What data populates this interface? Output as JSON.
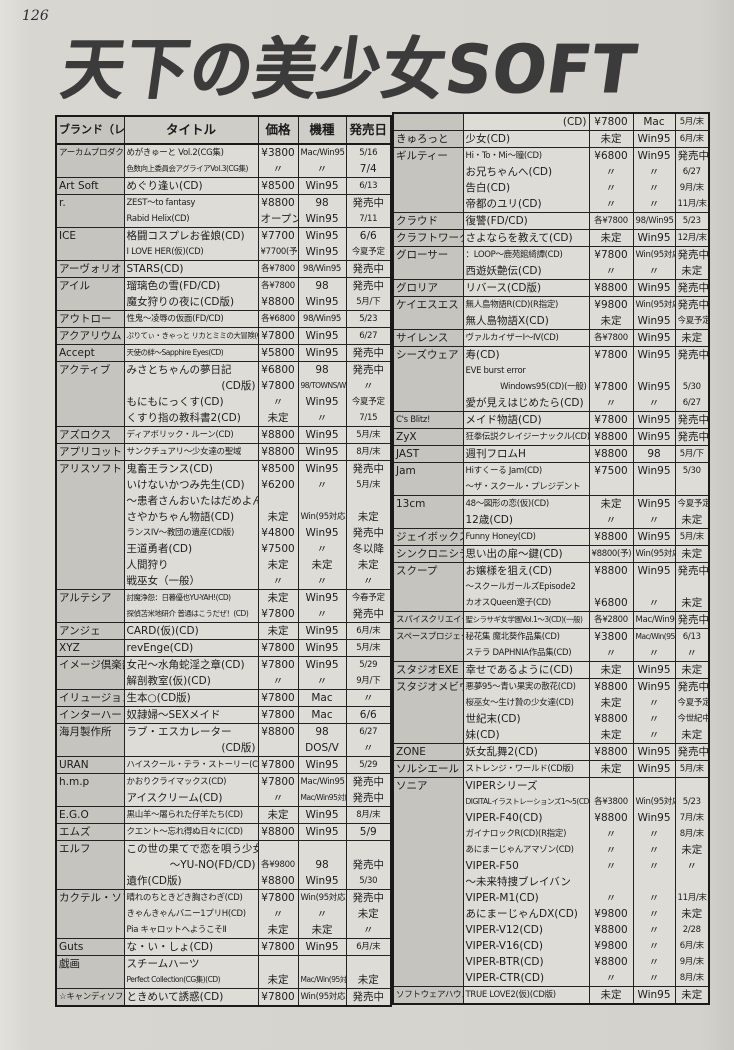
{
  "page": {
    "number": "126",
    "title": "天下の美少女SOFT"
  },
  "columns": {
    "brand": "ブランド（レーベル）",
    "title": "タイトル",
    "price": "価格",
    "platform": "機種",
    "date": "発売日"
  },
  "left_table": {
    "rows": [
      {
        "g": 1,
        "b": "アーカムプロダクツ",
        "t": "めがきゅーと Vol.2(CG集)",
        "p": "¥3800",
        "m": "Mac/Win95",
        "d": "5/16"
      },
      {
        "t": "色数向上委員会アグライアVol.3(CG集)",
        "p": "〃",
        "m": "〃",
        "d": "7/4"
      },
      {
        "g": 1,
        "b": "Art Soft",
        "t": "めぐり逢い(CD)",
        "p": "¥8500",
        "m": "Win95",
        "d": "6/13"
      },
      {
        "g": 1,
        "b": "r.",
        "t": "ZEST～to fantasy",
        "p": "¥8800",
        "m": "98",
        "d": "発売中"
      },
      {
        "t": "Rabid Helix(CD)",
        "p": "オープン",
        "m": "Win95",
        "d": "7/11"
      },
      {
        "g": 1,
        "b": "ICE",
        "t": "格闘コスプレお雀娘(CD)",
        "p": "¥7700",
        "m": "Win95",
        "d": "6/6"
      },
      {
        "t": "I LOVE HER(仮)(CD)",
        "p": "¥7700(予)",
        "m": "Win95",
        "d": "今夏予定"
      },
      {
        "g": 1,
        "b": "アーヴォリオ",
        "t": "STARS(CD)",
        "p": "各¥7800",
        "m": "98/Win95",
        "d": "発売中"
      },
      {
        "g": 1,
        "b": "アイル",
        "t": "瑠璃色の雪(FD/CD)",
        "p": "各¥7800",
        "m": "98",
        "d": "発売中"
      },
      {
        "t": "魔女狩りの夜に(CD版)",
        "p": "¥8800",
        "m": "Win95",
        "d": "5月/下"
      },
      {
        "g": 1,
        "b": "アウトロー",
        "t": "性鬼～凌辱の仮面(FD/CD)",
        "p": "各¥6800",
        "m": "98/Win95",
        "d": "5/23"
      },
      {
        "g": 1,
        "b": "アクアリウム",
        "t": "ぷりてぃ・きゃっと リカとミミの大冒険(CD)",
        "p": "¥7800",
        "m": "Win95",
        "d": "6/27"
      },
      {
        "g": 1,
        "b": "Accept",
        "t": "天使の絆～Sapphire Eyes(CD)",
        "p": "¥5800",
        "m": "Win95",
        "d": "発売中"
      },
      {
        "g": 1,
        "b": "アクティブ",
        "t": "みさとちゃんの夢日記",
        "p": "¥6800",
        "m": "98",
        "d": "発売中"
      },
      {
        "t": "(CD版)",
        "a": "r",
        "p": "¥7800",
        "m": "98/TOWNS/Win95",
        "d": "〃"
      },
      {
        "t": "もにもにっくす(CD)",
        "p": "〃",
        "m": "Win95",
        "d": "今夏予定"
      },
      {
        "t": "くすり指の教科書2(CD)",
        "p": "未定",
        "m": "〃",
        "d": "7/15"
      },
      {
        "g": 1,
        "b": "アズロクス",
        "t": "ディアボリック・ルーン(CD)",
        "p": "¥8800",
        "m": "Win95",
        "d": "5月/末"
      },
      {
        "g": 1,
        "b": "アプリコット",
        "t": "サンクチュアリ～少女達の聖域",
        "p": "¥8800",
        "m": "Win95",
        "d": "8月/末"
      },
      {
        "g": 1,
        "b": "アリスソフト",
        "t": "鬼畜王ランス(CD)",
        "p": "¥8500",
        "m": "Win95",
        "d": "発売中"
      },
      {
        "t": "いけないかつみ先生(CD)",
        "p": "¥6200",
        "m": "〃",
        "d": "5月/末"
      },
      {
        "t": "～患者さんおいたはだめよん"
      },
      {
        "t": "さやかちゃん物語(CD)",
        "p": "未定",
        "m": "Win(95対応)",
        "d": "未定"
      },
      {
        "t": "ランスIV～教団の遺産(CD版)",
        "p": "¥4800",
        "m": "Win95",
        "d": "発売中"
      },
      {
        "t": "王道勇者(CD)",
        "p": "¥7500",
        "m": "〃",
        "d": "冬以降"
      },
      {
        "t": "人間狩り",
        "p": "未定",
        "m": "未定",
        "d": "未定"
      },
      {
        "t": "戦巫女（一般）",
        "p": "〃",
        "m": "〃",
        "d": "〃"
      },
      {
        "g": 1,
        "b": "アルテシア",
        "t": "討魔浄怨：日暮優也YU-YAH!(CD)",
        "p": "未定",
        "m": "Win95",
        "d": "今春予定"
      },
      {
        "t": "探偵苫米地研介 普通はこうだぜ！(CD)",
        "p": "¥7800",
        "m": "〃",
        "d": "発売中"
      },
      {
        "g": 1,
        "b": "アンジェ",
        "t": "CARD(仮)(CD)",
        "p": "未定",
        "m": "Win95",
        "d": "6月/末"
      },
      {
        "g": 1,
        "b": "XYZ",
        "t": "revEnge(CD)",
        "p": "¥7800",
        "m": "Win95",
        "d": "5月/末"
      },
      {
        "g": 1,
        "b": "イメージ倶楽部",
        "t": "女卍～水角蛇淫之章(CD)",
        "p": "¥7800",
        "m": "Win95",
        "d": "5/29"
      },
      {
        "t": "解剖教室(仮)(CD)",
        "p": "〃",
        "m": "〃",
        "d": "9月/下"
      },
      {
        "g": 1,
        "b": "イリュージョン",
        "t": "生本○(CD版)",
        "p": "¥7800",
        "m": "Mac",
        "d": "〃"
      },
      {
        "g": 1,
        "b": "インターハート",
        "t": "奴隷婦～SEXメイド",
        "p": "¥7800",
        "m": "Mac",
        "d": "6/6"
      },
      {
        "g": 1,
        "b": "海月製作所",
        "t": "ラブ・エスカレーター",
        "p": "¥8800",
        "m": "98",
        "d": "6/27"
      },
      {
        "t": "(CD版)",
        "a": "r",
        "m": "DOS/V",
        "d": "〃"
      },
      {
        "g": 1,
        "b": "URAN",
        "t": "ハイスクール・テラ・ストーリー(CD)",
        "p": "¥7800",
        "m": "Win95",
        "d": "5/29"
      },
      {
        "g": 1,
        "b": "h.m.p",
        "t": "かおりクライマックス(CD)",
        "p": "¥7800",
        "m": "Mac/Win95",
        "d": "発売中"
      },
      {
        "t": "アイスクリーム(CD)",
        "p": "〃",
        "m": "Mac/Win95対応",
        "d": "発売中"
      },
      {
        "g": 1,
        "b": "E.G.O",
        "t": "黒山羊～屠られた仔羊たち(CD)",
        "p": "未定",
        "m": "Win95",
        "d": "8月/末"
      },
      {
        "g": 1,
        "b": "エムズ",
        "t": "クエント～忘れ得ぬ日々に(CD)",
        "p": "¥8800",
        "m": "Win95",
        "d": "5/9"
      },
      {
        "g": 1,
        "b": "エルフ",
        "t": "この世の果てで恋を唄う少女"
      },
      {
        "t": "～YU-NO(FD/CD)",
        "a": "r",
        "p": "各¥9800",
        "m": "98",
        "d": "発売中"
      },
      {
        "t": "遺作(CD版)",
        "p": "¥8800",
        "m": "Win95",
        "d": "5/30"
      },
      {
        "g": 1,
        "b": "カクテル・ソフト",
        "t": "晴れのちときどき胸さわぎ(CD)",
        "p": "¥7800",
        "m": "Win(95対応)",
        "d": "発売中"
      },
      {
        "t": "きゃんきゃんバニー1プリH(CD)",
        "p": "〃",
        "m": "〃",
        "d": "未定"
      },
      {
        "t": "Pia キャロットへようこそⅡ",
        "p": "未定",
        "m": "未定",
        "d": "〃"
      },
      {
        "g": 1,
        "b": "Guts",
        "t": "な・い・しょ(CD)",
        "p": "¥7800",
        "m": "Win95",
        "d": "6月/末"
      },
      {
        "g": 1,
        "b": "戯画",
        "t": "スチームハーツ"
      },
      {
        "t": "Perfect Collection(CG集)(CD)",
        "p": "未定",
        "m": "Mac/Win(95対応)",
        "d": "未定"
      },
      {
        "g": 1,
        "b": "☆キャンディソフト",
        "t": "ときめいて誘惑(CD)",
        "p": "¥7800",
        "m": "Win(95対応)",
        "d": "発売中"
      }
    ]
  },
  "right_table": {
    "rows": [
      {
        "g": 1,
        "t": "(CD)",
        "a": "r",
        "p": "¥7800",
        "m": "Mac",
        "d": "5月/末"
      },
      {
        "g": 1,
        "b": "きゅろっと",
        "t": "少女(CD)",
        "p": "未定",
        "m": "Win95",
        "d": "6月/末"
      },
      {
        "g": 1,
        "b": "ギルティー",
        "t": "Hi・To・Mi～瞳(CD)",
        "p": "¥6800",
        "m": "Win95",
        "d": "発売中"
      },
      {
        "t": "お兄ちゃんへ(CD)",
        "p": "〃",
        "m": "〃",
        "d": "6/27"
      },
      {
        "t": "告白(CD)",
        "p": "〃",
        "m": "〃",
        "d": "9月/末"
      },
      {
        "t": "帝都のユリ(CD)",
        "p": "〃",
        "m": "〃",
        "d": "11月/末"
      },
      {
        "g": 1,
        "b": "クラウド",
        "t": "復讐(FD/CD)",
        "p": "各¥7800",
        "m": "98/Win95",
        "d": "5/23"
      },
      {
        "g": 1,
        "b": "クラフトワーク",
        "t": "さよならを教えて(CD)",
        "p": "未定",
        "m": "Win95",
        "d": "12月/末"
      },
      {
        "g": 1,
        "b": "グローサー",
        "t": "：LOOP～鹿苑館綺譚(CD)",
        "p": "¥7800",
        "m": "Win(95対応)",
        "d": "発売中"
      },
      {
        "t": "西遊妖艶伝(CD)",
        "p": "〃",
        "m": "〃",
        "d": "未定"
      },
      {
        "g": 1,
        "b": "グロリア",
        "t": "リバース(CD版)",
        "p": "¥8800",
        "m": "Win95",
        "d": "発売中"
      },
      {
        "g": 1,
        "b": "ケイエスエス",
        "t": "無人島物語R(CD)(R指定)",
        "p": "¥9800",
        "m": "Win(95対応)",
        "d": "発売中"
      },
      {
        "t": "無人島物語X(CD)",
        "p": "未定",
        "m": "Win95",
        "d": "今夏予定"
      },
      {
        "g": 1,
        "b": "サイレンス",
        "t": "ヴァルカイザーⅠ～Ⅳ(CD)",
        "p": "各¥7800",
        "m": "Win95",
        "d": "未定"
      },
      {
        "g": 1,
        "b": "シーズウェア",
        "t": "寿(CD)",
        "p": "¥7800",
        "m": "Win95",
        "d": "発売中"
      },
      {
        "t": "EVE burst error"
      },
      {
        "t": "Windows95(CD)(一般)",
        "a": "r",
        "p": "¥7800",
        "m": "Win95",
        "d": "5/30"
      },
      {
        "t": "愛が見えはじめたら(CD)",
        "p": "〃",
        "m": "〃",
        "d": "6/27"
      },
      {
        "g": 1,
        "b": "C's Blitz!",
        "t": "メイド物語(CD)",
        "p": "¥7800",
        "m": "Win95",
        "d": "発売中"
      },
      {
        "g": 1,
        "b": "ZyX",
        "t": "狂拳伝説クレイジーナックル(CD)",
        "p": "¥8800",
        "m": "Win95",
        "d": "発売中"
      },
      {
        "g": 1,
        "b": "JAST",
        "t": "週刊フロムH",
        "p": "¥8800",
        "m": "98",
        "d": "5月/下"
      },
      {
        "g": 1,
        "b": "Jam",
        "t": "Hiすくーる Jam(CD)",
        "p": "¥7500",
        "m": "Win95",
        "d": "5/30"
      },
      {
        "t": "～ザ・スクール・プレジデント"
      },
      {
        "g": 1,
        "b": "13cm",
        "t": "48～図形の恋(仮)(CD)",
        "p": "未定",
        "m": "Win95",
        "d": "今夏予定"
      },
      {
        "t": "12歳(CD)",
        "p": "〃",
        "m": "〃",
        "d": "未定"
      },
      {
        "g": 1,
        "b": "ジェイボックス",
        "t": "Funny Honey(CD)",
        "p": "¥8800",
        "m": "Win95",
        "d": "5月/末"
      },
      {
        "g": 1,
        "b": "シンクロニシティ",
        "t": "思い出の扉～鍵(CD)",
        "p": "¥8800(予)",
        "m": "Win(95対応)",
        "d": "未定"
      },
      {
        "g": 1,
        "b": "スクープ",
        "t": "お嬢様を狙え(CD)",
        "p": "¥8800",
        "m": "Win95",
        "d": "発売中"
      },
      {
        "t": "～スクールガールズEpisode2"
      },
      {
        "t": "カオスQueen遼子(CD)",
        "p": "¥6800",
        "m": "〃",
        "d": "未定"
      },
      {
        "g": 1,
        "b": "スパイスクリエイティブ",
        "t": "聖シラサギ女学園Vol.1～3(CD)(一般)",
        "p": "各¥2800",
        "m": "Mac/Win95",
        "d": "発売中"
      },
      {
        "g": 1,
        "b": "スペースプロジェクト",
        "t": "秘花集 魔北葵作品集(CD)",
        "p": "¥3800",
        "m": "Mac/Win(95対応)",
        "d": "6/13"
      },
      {
        "t": "ステラ DAPHNIA作品集(CD)",
        "p": "〃",
        "m": "〃",
        "d": "〃"
      },
      {
        "g": 1,
        "b": "スタジオEXE",
        "t": "幸せであるように(CD)",
        "p": "未定",
        "m": "Win95",
        "d": "未定"
      },
      {
        "g": 1,
        "b": "スタジオメビウス",
        "t": "悪夢95～青い果実の散花(CD)",
        "p": "¥8800",
        "m": "Win95",
        "d": "発売中"
      },
      {
        "t": "桜巫女～生け贄の少女達(CD)",
        "p": "未定",
        "m": "〃",
        "d": "今夏予定"
      },
      {
        "t": "世紀末(CD)",
        "p": "¥8800",
        "m": "〃",
        "d": "今世紀中"
      },
      {
        "t": "妹(CD)",
        "p": "未定",
        "m": "〃",
        "d": "未定"
      },
      {
        "g": 1,
        "b": "ZONE",
        "t": "妖女乱舞2(CD)",
        "p": "¥8800",
        "m": "Win95",
        "d": "発売中"
      },
      {
        "g": 1,
        "b": "ソルシエール",
        "t": "ストレンジ・ワールド(CD版)",
        "p": "未定",
        "m": "Win95",
        "d": "5月/末"
      },
      {
        "g": 1,
        "b": "ソニア",
        "t": "VIPERシリーズ"
      },
      {
        "t": "DIGITALイラストレーションズ1～5(CD)",
        "p": "各¥3800",
        "m": "Win(95対応)",
        "d": "5/23"
      },
      {
        "t": "VIPER-F40(CD)",
        "p": "¥8800",
        "m": "Win95",
        "d": "7月/末"
      },
      {
        "t": "ガイナロックR(CD)(R指定)",
        "p": "〃",
        "m": "〃",
        "d": "8月/末"
      },
      {
        "t": "あにまーじゃんアマゾン(CD)",
        "p": "〃",
        "m": "〃",
        "d": "未定"
      },
      {
        "t": "VIPER-F50",
        "p": "〃",
        "m": "〃",
        "d": "〃"
      },
      {
        "t": "～未来特捜ブレイバン"
      },
      {
        "t": "VIPER-M1(CD)",
        "p": "〃",
        "m": "〃",
        "d": "11月/末"
      },
      {
        "t": "あにまーじゃんDX(CD)",
        "p": "¥9800",
        "m": "〃",
        "d": "未定"
      },
      {
        "t": "VIPER-V12(CD)",
        "p": "¥8800",
        "m": "〃",
        "d": "2/28"
      },
      {
        "t": "VIPER-V16(CD)",
        "p": "¥9800",
        "m": "〃",
        "d": "6月/末"
      },
      {
        "t": "VIPER-BTR(CD)",
        "p": "¥8800",
        "m": "〃",
        "d": "9月/末"
      },
      {
        "t": "VIPER-CTR(CD)",
        "p": "〃",
        "m": "〃",
        "d": "8月/末"
      },
      {
        "g": 1,
        "b": "ソフトウェアハウスぱせり",
        "t": "TRUE LOVE2(仮)(CD版)",
        "p": "未定",
        "m": "Win95",
        "d": "未定"
      }
    ]
  }
}
